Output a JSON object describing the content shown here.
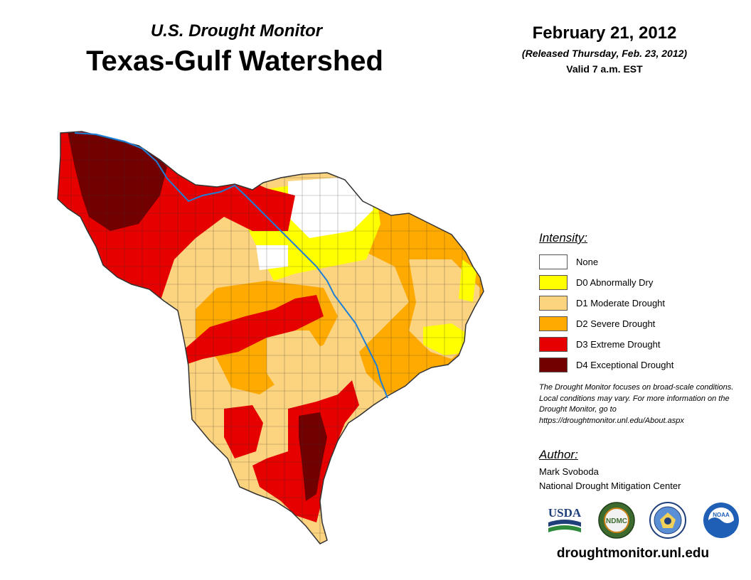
{
  "header": {
    "subtitle": "U.S. Drought Monitor",
    "title": "Texas-Gulf Watershed",
    "date": "February 21, 2012",
    "released": "(Released Thursday, Feb. 23, 2012)",
    "valid": "Valid 7 a.m. EST"
  },
  "legend": {
    "heading": "Intensity:",
    "items": [
      {
        "label": "None",
        "color": "#ffffff"
      },
      {
        "label": "D0 Abnormally Dry",
        "color": "#ffff00"
      },
      {
        "label": "D1 Moderate Drought",
        "color": "#fcd37f"
      },
      {
        "label": "D2 Severe Drought",
        "color": "#ffaa00"
      },
      {
        "label": "D3 Extreme Drought",
        "color": "#e60000"
      },
      {
        "label": "D4 Exceptional Drought",
        "color": "#730000"
      }
    ]
  },
  "note": "The Drought Monitor focuses on broad-scale conditions. Local conditions may vary. For more information on the Drought Monitor, go to https://droughtmonitor.unl.edu/About.aspx",
  "author": {
    "heading": "Author:",
    "name": "Mark Svoboda",
    "org": "National Drought Mitigation Center"
  },
  "logos": {
    "usda": "USDA",
    "ndmc": "NDMC",
    "noaa": "NOAA"
  },
  "website": "droughtmonitor.unl.edu",
  "colors": {
    "river": "#1e7fd8",
    "county_lines": "#333333"
  }
}
